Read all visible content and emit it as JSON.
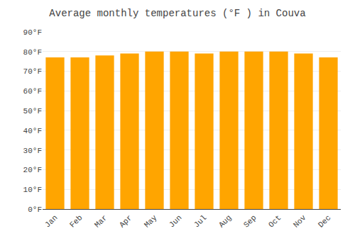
{
  "chart_data": {
    "type": "bar",
    "title": "Average monthly temperatures (°F ) in Couva",
    "categories": [
      "Jan",
      "Feb",
      "Mar",
      "Apr",
      "May",
      "Jun",
      "Jul",
      "Aug",
      "Sep",
      "Oct",
      "Nov",
      "Dec"
    ],
    "values": [
      77,
      77,
      78,
      79,
      80,
      80,
      79,
      80,
      80,
      80,
      79,
      77
    ],
    "color": "#FFA500",
    "ylim": [
      0,
      90
    ],
    "yticks": [
      {
        "value": 0,
        "label": "0°F"
      },
      {
        "value": 10,
        "label": "10°F"
      },
      {
        "value": 20,
        "label": "20°F"
      },
      {
        "value": 30,
        "label": "30°F"
      },
      {
        "value": 40,
        "label": "40°F"
      },
      {
        "value": 50,
        "label": "50°F"
      },
      {
        "value": 60,
        "label": "60°F"
      },
      {
        "value": 70,
        "label": "70°F"
      },
      {
        "value": 80,
        "label": "80°F"
      },
      {
        "value": 90,
        "label": "90°F"
      }
    ],
    "grid": true
  }
}
